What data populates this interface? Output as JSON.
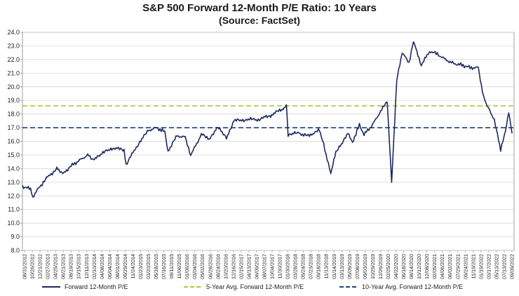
{
  "chart_data": {
    "type": "line",
    "title": "S&P 500 Forward 12-Month P/E Ratio: 10 Years",
    "subtitle": "(Source: FactSet)",
    "xlabel": "",
    "ylabel": "",
    "ylim": [
      8.0,
      24.0
    ],
    "y_ticks": [
      "8.0",
      "9.0",
      "10.0",
      "11.0",
      "12.0",
      "13.0",
      "14.0",
      "15.0",
      "16.0",
      "17.0",
      "18.0",
      "19.0",
      "20.0",
      "21.0",
      "22.0",
      "23.0",
      "24.0"
    ],
    "x_ticks": [
      "08/31/2012",
      "10/26/2012",
      "12/21/2012",
      "02/27/2013",
      "04/25/2013",
      "06/21/2013",
      "08/19/2013",
      "10/15/2013",
      "12/11/2013",
      "02/10/2014",
      "04/08/2014",
      "06/04/2014",
      "08/01/2014",
      "09/29/2014",
      "11/24/2014",
      "01/23/2015",
      "03/20/2015",
      "05/18/2015",
      "07/16/2015",
      "09/11/2015",
      "11/06/2015",
      "01/06/2016",
      "03/04/2016",
      "05/02/2016",
      "06/28/2016",
      "08/24/2016",
      "10/20/2016",
      "12/16/2016",
      "02/15/2017",
      "04/13/2017",
      "06/09/2017",
      "08/07/2017",
      "10/04/2017",
      "11/30/2017",
      "01/30/2018",
      "03/28/2018",
      "05/24/2018",
      "07/23/2018",
      "09/18/2018",
      "11/13/2018",
      "01/14/2019",
      "03/13/2019",
      "05/09/2019",
      "07/08/2019",
      "09/03/2019",
      "10/29/2019",
      "12/26/2019",
      "02/25/2020",
      "04/22/2020",
      "06/18/2020",
      "08/14/2020",
      "10/12/2020",
      "12/08/2020",
      "02/05/2021",
      "04/06/2021",
      "06/02/2021",
      "07/29/2021",
      "09/24/2021",
      "11/19/2021",
      "01/19/2022",
      "03/17/2022",
      "05/13/2022",
      "07/13/2022",
      "09/09/2022"
    ],
    "grid": true,
    "legend_position": "bottom",
    "series": [
      {
        "name": "Forward 12-Month P/E",
        "color": "#1b2a5c",
        "style": "solid",
        "x": [
          "2012-08-31",
          "2012-10-31",
          "2012-11-15",
          "2012-12-31",
          "2013-02-28",
          "2013-05-15",
          "2013-06-24",
          "2013-08-30",
          "2013-10-31",
          "2013-12-31",
          "2014-02-04",
          "2014-03-31",
          "2014-06-30",
          "2014-09-30",
          "2014-10-15",
          "2014-12-31",
          "2015-03-31",
          "2015-05-31",
          "2015-07-31",
          "2015-08-25",
          "2015-10-31",
          "2015-12-31",
          "2016-02-11",
          "2016-04-30",
          "2016-06-27",
          "2016-08-31",
          "2016-11-04",
          "2016-12-31",
          "2017-03-31",
          "2017-06-30",
          "2017-09-30",
          "2017-12-31",
          "2018-01-26",
          "2018-02-08",
          "2018-04-30",
          "2018-06-30",
          "2018-09-30",
          "2018-10-31",
          "2018-12-24",
          "2019-01-31",
          "2019-04-30",
          "2019-06-03",
          "2019-07-26",
          "2019-08-30",
          "2019-10-31",
          "2019-12-31",
          "2020-02-19",
          "2020-03-23",
          "2020-04-30",
          "2020-06-08",
          "2020-07-31",
          "2020-09-02",
          "2020-10-31",
          "2020-12-31",
          "2021-02-28",
          "2021-04-30",
          "2021-06-30",
          "2021-08-31",
          "2021-10-31",
          "2021-12-31",
          "2022-01-31",
          "2022-03-07",
          "2022-04-30",
          "2022-06-16",
          "2022-07-31",
          "2022-08-16",
          "2022-09-09"
        ],
        "values": [
          12.7,
          12.5,
          11.9,
          12.6,
          13.3,
          14.0,
          13.6,
          14.2,
          14.6,
          15.0,
          14.7,
          15.0,
          15.5,
          15.4,
          14.3,
          15.6,
          16.8,
          17.0,
          16.7,
          15.3,
          16.4,
          16.3,
          15.0,
          16.5,
          16.2,
          17.0,
          16.3,
          17.5,
          17.6,
          17.6,
          17.9,
          18.4,
          18.6,
          16.5,
          16.6,
          16.4,
          16.8,
          15.8,
          13.6,
          15.2,
          16.6,
          15.9,
          17.2,
          16.5,
          17.2,
          18.2,
          18.9,
          13.1,
          20.5,
          22.5,
          21.8,
          23.3,
          21.6,
          22.6,
          22.4,
          22.0,
          21.7,
          21.6,
          21.4,
          21.4,
          19.6,
          18.6,
          17.6,
          15.3,
          17.2,
          18.1,
          16.6
        ]
      },
      {
        "name": "5-Year Avg. Forward 12-Month P/E",
        "color": "#a6cc3a",
        "style": "dashed",
        "value": 18.6
      },
      {
        "name": "10-Year Avg. Forward 12-Month P/E",
        "color": "#1f3f7a",
        "style": "dashed",
        "value": 17.0
      }
    ]
  }
}
